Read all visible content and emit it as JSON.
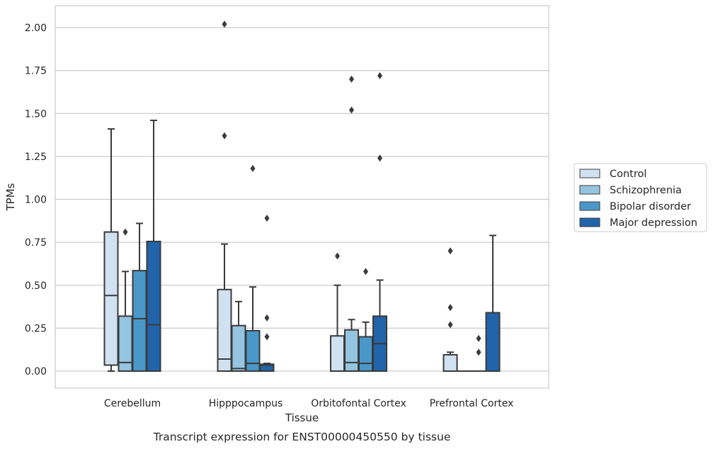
{
  "chart_data": {
    "type": "boxplot",
    "title": "",
    "caption": "Transcript expression for ENST00000450550 by tissue",
    "xlabel": "Tissue",
    "ylabel": "TPMs",
    "ylim": [
      -0.1,
      2.12
    ],
    "yticks": [
      0.0,
      0.25,
      0.5,
      0.75,
      1.0,
      1.25,
      1.5,
      1.75,
      2.0
    ],
    "ytick_labels": [
      "0.00",
      "0.25",
      "0.50",
      "0.75",
      "1.00",
      "1.25",
      "1.50",
      "1.75",
      "2.00"
    ],
    "grid": "horizontal",
    "legend_position": "right",
    "categories": [
      "Cerebellum",
      "Hipppocampus",
      "Orbitofontal Cortex",
      "Prefrontal Cortex"
    ],
    "series": [
      {
        "name": "Control",
        "color": "#d0e1f2",
        "boxes": [
          {
            "whislo": 0.0,
            "q1": 0.035,
            "med": 0.44,
            "q3": 0.81,
            "whishi": 1.41,
            "fliers": []
          },
          {
            "whislo": 0.0,
            "q1": 0.0,
            "med": 0.07,
            "q3": 0.475,
            "whishi": 0.74,
            "fliers": [
              1.37,
              2.02
            ]
          },
          {
            "whislo": 0.0,
            "q1": 0.0,
            "med": 0.0,
            "q3": 0.205,
            "whishi": 0.5,
            "fliers": [
              0.67
            ]
          },
          {
            "whislo": 0.0,
            "q1": 0.0,
            "med": 0.0,
            "q3": 0.095,
            "whishi": 0.11,
            "fliers": [
              0.27,
              0.37,
              0.7
            ]
          }
        ]
      },
      {
        "name": "Schizophrenia",
        "color": "#94c4df",
        "boxes": [
          {
            "whislo": 0.0,
            "q1": 0.0,
            "med": 0.05,
            "q3": 0.32,
            "whishi": 0.58,
            "fliers": [
              0.81
            ]
          },
          {
            "whislo": 0.0,
            "q1": 0.0,
            "med": 0.015,
            "q3": 0.265,
            "whishi": 0.405,
            "fliers": []
          },
          {
            "whislo": 0.0,
            "q1": 0.0,
            "med": 0.05,
            "q3": 0.24,
            "whishi": 0.3,
            "fliers": [
              1.52,
              1.7
            ]
          },
          {
            "whislo": 0.0,
            "q1": 0.0,
            "med": 0.0,
            "q3": 0.0,
            "whishi": 0.0,
            "fliers": []
          }
        ]
      },
      {
        "name": "Bipolar disorder",
        "color": "#4a98c9",
        "boxes": [
          {
            "whislo": 0.0,
            "q1": 0.0,
            "med": 0.305,
            "q3": 0.585,
            "whishi": 0.86,
            "fliers": []
          },
          {
            "whislo": 0.0,
            "q1": 0.0,
            "med": 0.045,
            "q3": 0.235,
            "whishi": 0.49,
            "fliers": [
              1.18
            ]
          },
          {
            "whislo": 0.0,
            "q1": 0.0,
            "med": 0.045,
            "q3": 0.2,
            "whishi": 0.285,
            "fliers": [
              0.58
            ]
          },
          {
            "whislo": 0.0,
            "q1": 0.0,
            "med": 0.0,
            "q3": 0.0,
            "whishi": 0.0,
            "fliers": [
              0.11,
              0.19
            ]
          }
        ]
      },
      {
        "name": "Major depression",
        "color": "#2264aa",
        "boxes": [
          {
            "whislo": 0.0,
            "q1": 0.0,
            "med": 0.27,
            "q3": 0.755,
            "whishi": 1.46,
            "fliers": []
          },
          {
            "whislo": 0.0,
            "q1": 0.0,
            "med": 0.035,
            "q3": 0.04,
            "whishi": 0.045,
            "fliers": [
              0.2,
              0.31,
              0.89
            ]
          },
          {
            "whislo": 0.0,
            "q1": 0.0,
            "med": 0.16,
            "q3": 0.32,
            "whishi": 0.53,
            "fliers": [
              1.24,
              1.72
            ]
          },
          {
            "whislo": 0.0,
            "q1": 0.0,
            "med": 0.0,
            "q3": 0.34,
            "whishi": 0.79,
            "fliers": []
          }
        ]
      }
    ]
  }
}
